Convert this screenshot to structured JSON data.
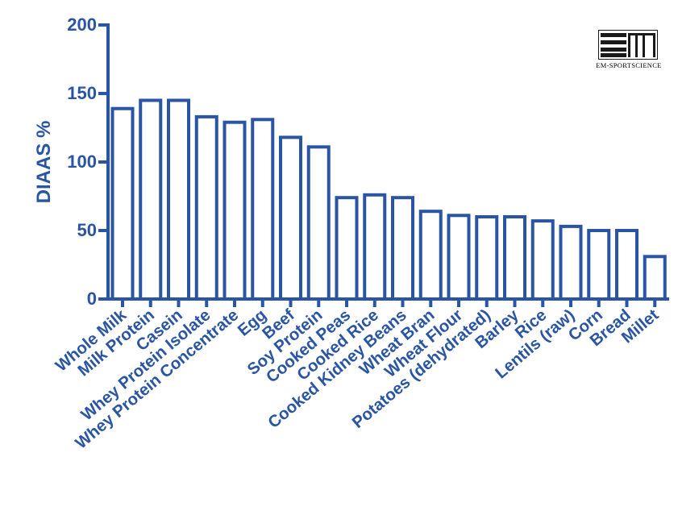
{
  "chart_data": {
    "type": "bar",
    "title": "",
    "xlabel": "",
    "ylabel": "DIAAS %",
    "ylim": [
      0,
      200
    ],
    "yticks": [
      "0",
      "50",
      "100",
      "150",
      "200"
    ],
    "categories": [
      "Whole Milk",
      "Milk Protein",
      "Casein",
      "Whey Protein Isolate",
      "Whey Protein Concentrate",
      "Egg",
      "Beef",
      "Soy Protein",
      "Cooked Peas",
      "Cooked Rice",
      "Cooked Kidney Beans",
      "Wheat Bran",
      "Wheat Flour",
      "Potatoes (dehydrated)",
      "Barley",
      "Rice",
      "Lentils (raw)",
      "Corn",
      "Bread",
      "Millet"
    ],
    "values": [
      139,
      145,
      145,
      133,
      129,
      131,
      118,
      111,
      74,
      76,
      74,
      64,
      61,
      60,
      60,
      57,
      53,
      50,
      50,
      31
    ],
    "grid": false,
    "colors": {
      "axis": "#2a55a4",
      "bar_fill": "#ffffff",
      "bar_stroke": "#2a55a4"
    }
  },
  "logo": {
    "text": "EM-SPORTSCIENCE",
    "color": "#1a1a1a"
  }
}
